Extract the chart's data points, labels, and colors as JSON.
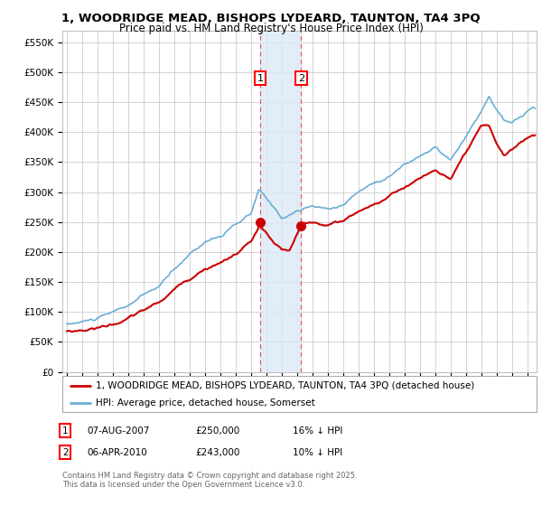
{
  "title_line1": "1, WOODRIDGE MEAD, BISHOPS LYDEARD, TAUNTON, TA4 3PQ",
  "title_line2": "Price paid vs. HM Land Registry's House Price Index (HPI)",
  "ylabel_ticks": [
    "£0",
    "£50K",
    "£100K",
    "£150K",
    "£200K",
    "£250K",
    "£300K",
    "£350K",
    "£400K",
    "£450K",
    "£500K",
    "£550K"
  ],
  "ytick_vals": [
    0,
    50000,
    100000,
    150000,
    200000,
    250000,
    300000,
    350000,
    400000,
    450000,
    500000,
    550000
  ],
  "ylim": [
    0,
    570000
  ],
  "hpi_color": "#6baed6",
  "price_color": "#cc0000",
  "sale1_date": 2007.58,
  "sale1_price": 250000,
  "sale2_date": 2010.25,
  "sale2_price": 243000,
  "legend_line1": "1, WOODRIDGE MEAD, BISHOPS LYDEARD, TAUNTON, TA4 3PQ (detached house)",
  "legend_line2": "HPI: Average price, detached house, Somerset",
  "annotation1_label": "1",
  "annotation1_date": "07-AUG-2007",
  "annotation1_price": "£250,000",
  "annotation1_pct": "16% ↓ HPI",
  "annotation2_label": "2",
  "annotation2_date": "06-APR-2010",
  "annotation2_price": "£243,000",
  "annotation2_pct": "10% ↓ HPI",
  "footer": "Contains HM Land Registry data © Crown copyright and database right 2025.\nThis data is licensed under the Open Government Licence v3.0.",
  "background_color": "#ffffff",
  "grid_color": "#cccccc",
  "shade_color": "#dce9f5"
}
